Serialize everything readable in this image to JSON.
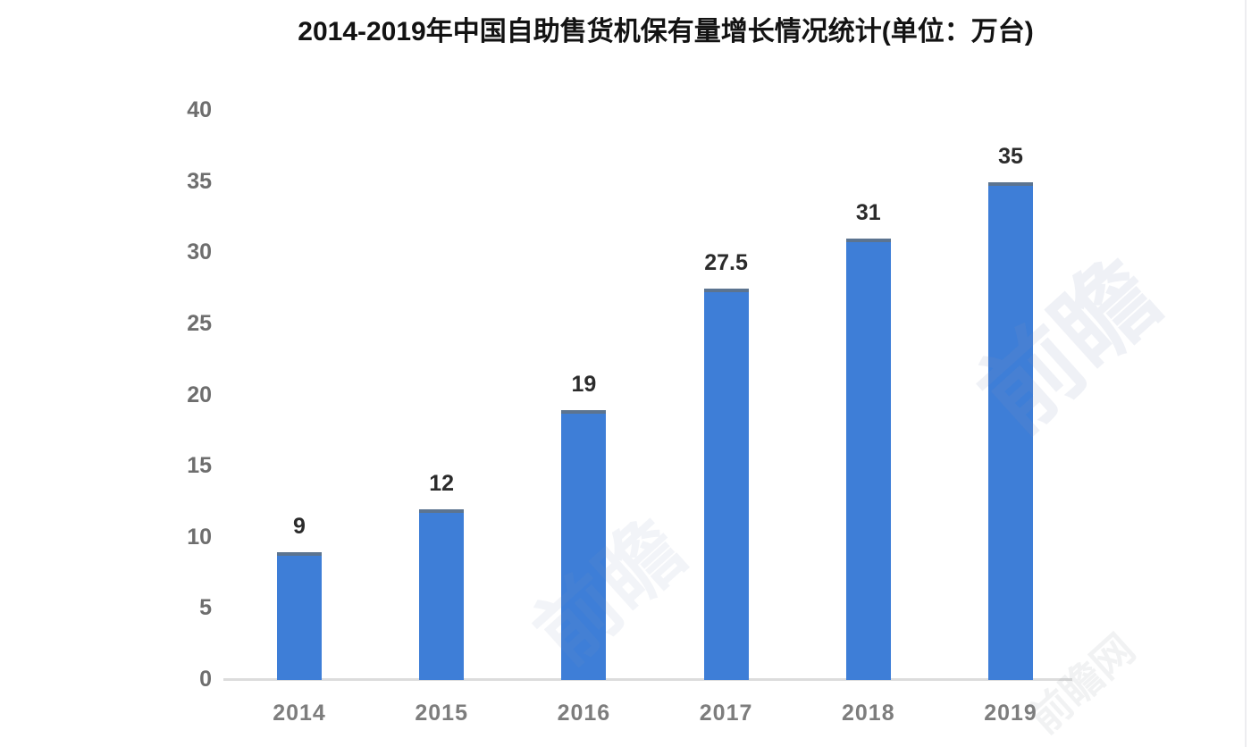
{
  "chart_data": {
    "type": "bar",
    "title": "2014-2019年中国自助售货机保有量增长情况统计(单位：万台)",
    "categories": [
      "2014",
      "2015",
      "2016",
      "2017",
      "2018",
      "2019"
    ],
    "values": [
      9,
      12,
      19,
      27.5,
      31,
      35
    ],
    "value_labels": [
      "9",
      "12",
      "19",
      "27.5",
      "31",
      "35"
    ],
    "xlabel": "",
    "ylabel": "",
    "ylim": [
      0,
      40
    ],
    "yticks": [
      0,
      5,
      10,
      15,
      20,
      25,
      30,
      35,
      40
    ],
    "grid": false,
    "legend": false,
    "bar_color": "#3e7ed7",
    "bar_top_edge_color": "#5c7490",
    "axis_line_color": "#dcdcdc",
    "value_label_color": "#2b2b2b",
    "tick_label_color": "#6e6e6e"
  },
  "watermark": {
    "text": "前瞻",
    "text_small": "前瞻网"
  }
}
